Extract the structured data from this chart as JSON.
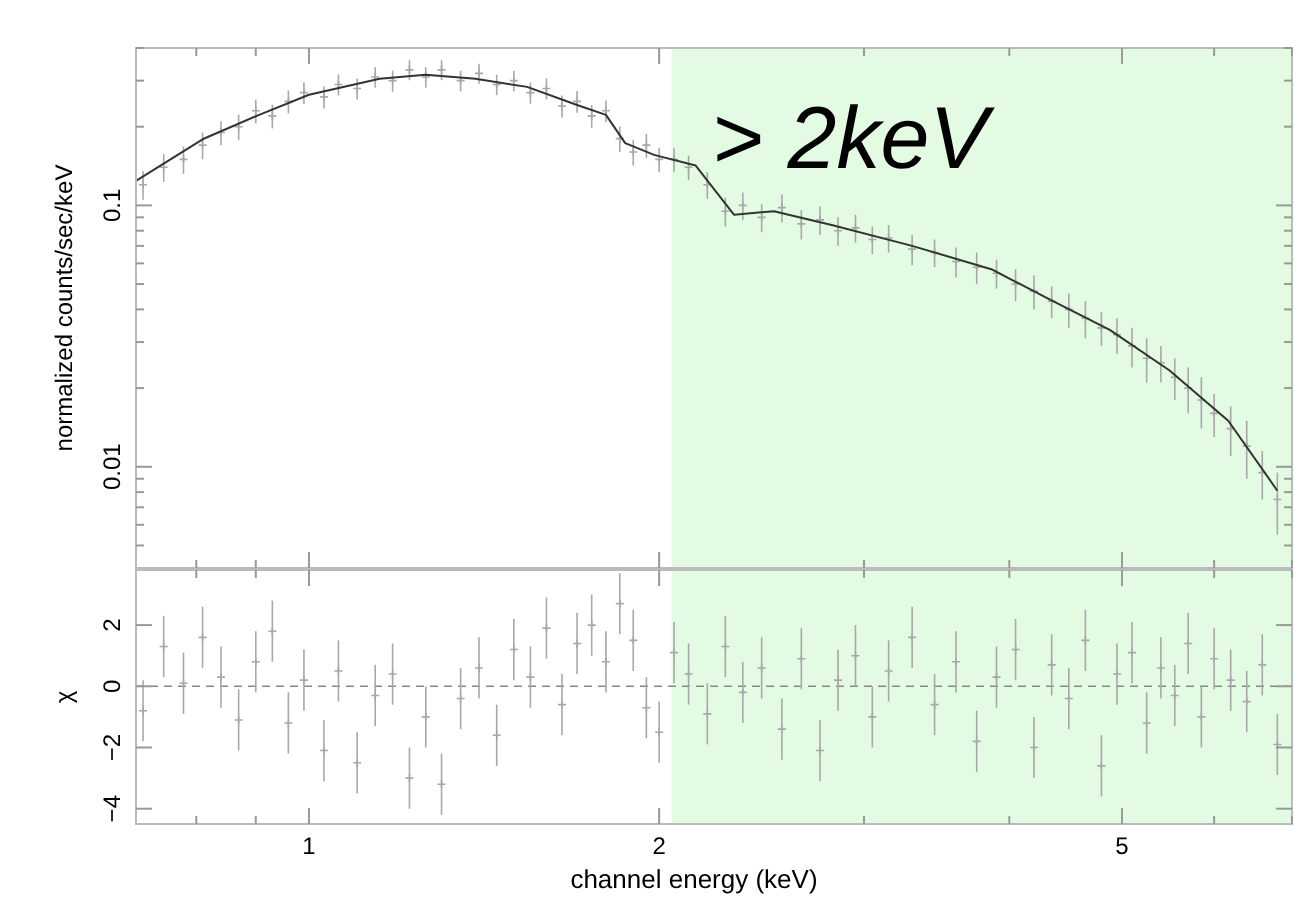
{
  "chart_data": [
    {
      "type": "scatter",
      "ylabel": "normalized counts/sec/keV",
      "log": "xy",
      "grid": false,
      "tick_labels": "y",
      "xlim": [
        0.71,
        7
      ],
      "ylim": [
        0.0041,
        0.4
      ],
      "xticks": [
        {
          "value": 0.8,
          "label": null
        },
        {
          "value": 0.9,
          "label": null
        },
        1,
        2,
        {
          "value": 3,
          "label": null
        },
        {
          "value": 4,
          "label": null
        },
        5,
        {
          "value": 6,
          "label": null
        },
        {
          "value": 7,
          "label": null
        }
      ],
      "yticks": [
        {
          "value": 0.005,
          "label": null
        },
        {
          "value": 0.006,
          "label": null
        },
        {
          "value": 0.007,
          "label": null
        },
        {
          "value": 0.008,
          "label": null
        },
        {
          "value": 0.009,
          "label": null
        },
        0.01,
        {
          "value": 0.02,
          "label": null
        },
        {
          "value": 0.03,
          "label": null
        },
        {
          "value": 0.04,
          "label": null
        },
        {
          "value": 0.05,
          "label": null
        },
        {
          "value": 0.06,
          "label": null
        },
        {
          "value": 0.07,
          "label": null
        },
        {
          "value": 0.08,
          "label": null
        },
        {
          "value": 0.09,
          "label": null
        },
        0.1,
        {
          "value": 0.2,
          "label": null
        },
        {
          "value": 0.3,
          "label": null
        },
        {
          "value": 0.4,
          "label": null
        }
      ],
      "bands": [
        {
          "axis": "x",
          "from": 2.05,
          "to": 7,
          "label": "> 2keV",
          "color": "#e3fbe3"
        }
      ],
      "series": [
        {
          "type": "scatter",
          "marker": "cross",
          "color": "#a8a8a8",
          "x": [
            0.72,
            0.75,
            0.78,
            0.81,
            0.84,
            0.87,
            0.9,
            0.93,
            0.96,
            0.99,
            1.03,
            1.06,
            1.1,
            1.14,
            1.18,
            1.22,
            1.26,
            1.3,
            1.35,
            1.4,
            1.45,
            1.5,
            1.55,
            1.6,
            1.65,
            1.7,
            1.75,
            1.8,
            1.85,
            1.9,
            1.95,
            2.0,
            2.06,
            2.12,
            2.2,
            2.28,
            2.36,
            2.45,
            2.55,
            2.65,
            2.75,
            2.85,
            2.95,
            3.05,
            3.15,
            3.3,
            3.45,
            3.6,
            3.75,
            3.9,
            4.05,
            4.2,
            4.35,
            4.5,
            4.65,
            4.8,
            4.95,
            5.1,
            5.25,
            5.4,
            5.55,
            5.7,
            5.85,
            6.0,
            6.2,
            6.4,
            6.6,
            6.8
          ],
          "values": [
            0.12,
            0.14,
            0.15,
            0.17,
            0.19,
            0.2,
            0.23,
            0.22,
            0.25,
            0.27,
            0.26,
            0.29,
            0.28,
            0.31,
            0.3,
            0.33,
            0.31,
            0.33,
            0.3,
            0.32,
            0.29,
            0.3,
            0.27,
            0.28,
            0.24,
            0.25,
            0.22,
            0.23,
            0.18,
            0.16,
            0.17,
            0.15,
            0.15,
            0.14,
            0.12,
            0.095,
            0.1,
            0.09,
            0.098,
            0.085,
            0.088,
            0.08,
            0.082,
            0.074,
            0.075,
            0.068,
            0.066,
            0.061,
            0.058,
            0.055,
            0.05,
            0.047,
            0.043,
            0.04,
            0.037,
            0.034,
            0.032,
            0.029,
            0.026,
            0.025,
            0.022,
            0.02,
            0.018,
            0.016,
            0.014,
            0.012,
            0.0095,
            0.0075
          ],
          "errors": [
            0.015,
            0.017,
            0.018,
            0.02,
            0.02,
            0.022,
            0.024,
            0.023,
            0.025,
            0.026,
            0.025,
            0.027,
            0.026,
            0.028,
            0.028,
            0.029,
            0.028,
            0.029,
            0.027,
            0.028,
            0.026,
            0.027,
            0.025,
            0.026,
            0.023,
            0.024,
            0.022,
            0.022,
            0.02,
            0.018,
            0.018,
            0.016,
            0.016,
            0.015,
            0.014,
            0.012,
            0.012,
            0.011,
            0.012,
            0.011,
            0.011,
            0.01,
            0.01,
            0.009,
            0.009,
            0.009,
            0.008,
            0.008,
            0.008,
            0.007,
            0.007,
            0.007,
            0.006,
            0.006,
            0.006,
            0.005,
            0.005,
            0.005,
            0.005,
            0.004,
            0.004,
            0.004,
            0.004,
            0.003,
            0.003,
            0.003,
            0.002,
            0.002
          ]
        },
        {
          "type": "line",
          "line_style": "solid",
          "color": "#333333",
          "x": [
            0.71,
            0.81,
            0.906,
            1.0,
            1.15,
            1.26,
            1.39,
            1.54,
            1.7,
            1.8,
            1.87,
            1.98,
            2.15,
            2.32,
            2.51,
            2.82,
            3.3,
            3.86,
            4.34,
            4.88,
            5.49,
            6.17,
            6.8
          ],
          "values": [
            0.124,
            0.179,
            0.222,
            0.265,
            0.305,
            0.316,
            0.305,
            0.284,
            0.242,
            0.222,
            0.173,
            0.156,
            0.142,
            0.092,
            0.095,
            0.084,
            0.07,
            0.057,
            0.0435,
            0.0334,
            0.0234,
            0.015,
            0.0081
          ]
        }
      ]
    },
    {
      "type": "scatter",
      "xlabel": "channel energy (keV)",
      "ylabel": "χ",
      "log": "x",
      "grid": false,
      "xlim": [
        0.71,
        7
      ],
      "ylim": [
        -4.5,
        3.8
      ],
      "xticks": [
        {
          "value": 0.8,
          "label": null
        },
        {
          "value": 0.9,
          "label": null
        },
        1,
        2,
        {
          "value": 3,
          "label": null
        },
        {
          "value": 4,
          "label": null
        },
        5,
        {
          "value": 6,
          "label": null
        },
        {
          "value": 7,
          "label": null
        }
      ],
      "yticks": [
        {
          "value": -4,
          "label": "−4"
        },
        {
          "value": -2,
          "label": "−2"
        },
        0,
        2
      ],
      "bands": [
        {
          "axis": "x",
          "from": 2.05,
          "to": 7,
          "color": "#e3fbe3"
        }
      ],
      "ref_lines": [
        {
          "axis": "y",
          "value": 0,
          "color": "#888888",
          "line_style": "dashed"
        }
      ],
      "series": [
        {
          "type": "scatter",
          "marker": "cross",
          "color": "#a8a8a8",
          "x": [
            0.72,
            0.75,
            0.78,
            0.81,
            0.84,
            0.87,
            0.9,
            0.93,
            0.96,
            0.99,
            1.03,
            1.06,
            1.1,
            1.14,
            1.18,
            1.22,
            1.26,
            1.3,
            1.35,
            1.4,
            1.45,
            1.5,
            1.55,
            1.6,
            1.65,
            1.7,
            1.75,
            1.8,
            1.85,
            1.9,
            1.95,
            2.0,
            2.06,
            2.12,
            2.2,
            2.28,
            2.36,
            2.45,
            2.55,
            2.65,
            2.75,
            2.85,
            2.95,
            3.05,
            3.15,
            3.3,
            3.45,
            3.6,
            3.75,
            3.9,
            4.05,
            4.2,
            4.35,
            4.5,
            4.65,
            4.8,
            4.95,
            5.1,
            5.25,
            5.4,
            5.55,
            5.7,
            5.85,
            6.0,
            6.2,
            6.4,
            6.6,
            6.8
          ],
          "values": [
            -0.8,
            1.3,
            0.1,
            1.6,
            0.3,
            -1.1,
            0.8,
            1.8,
            -1.2,
            0.2,
            -2.1,
            0.5,
            -2.5,
            -0.3,
            0.4,
            -3.0,
            -1.0,
            -3.2,
            -0.4,
            0.6,
            -1.6,
            1.2,
            0.3,
            1.9,
            -0.6,
            1.4,
            2.0,
            0.8,
            2.7,
            1.5,
            -0.7,
            -1.5,
            1.1,
            0.4,
            -0.9,
            1.3,
            -0.2,
            0.6,
            -1.4,
            0.9,
            -2.1,
            0.2,
            1.0,
            -1.0,
            0.5,
            1.6,
            -0.6,
            0.8,
            -1.8,
            0.3,
            1.2,
            -2.0,
            0.7,
            -0.4,
            1.5,
            -2.6,
            0.4,
            1.1,
            -1.2,
            0.6,
            -0.3,
            1.4,
            -1.0,
            0.9,
            0.2,
            -0.5,
            0.7,
            -1.9
          ],
          "errors": [
            1,
            1,
            1,
            1,
            1,
            1,
            1,
            1,
            1,
            1,
            1,
            1,
            1,
            1,
            1,
            1,
            1,
            1,
            1,
            1,
            1,
            1,
            1,
            1,
            1,
            1,
            1,
            1,
            1,
            1,
            1,
            1,
            1,
            1,
            1,
            1,
            1,
            1,
            1,
            1,
            1,
            1,
            1,
            1,
            1,
            1,
            1,
            1,
            1,
            1,
            1,
            1,
            1,
            1,
            1,
            1,
            1,
            1,
            1,
            1,
            1,
            1,
            1,
            1,
            1,
            1,
            1,
            1
          ]
        }
      ]
    }
  ]
}
